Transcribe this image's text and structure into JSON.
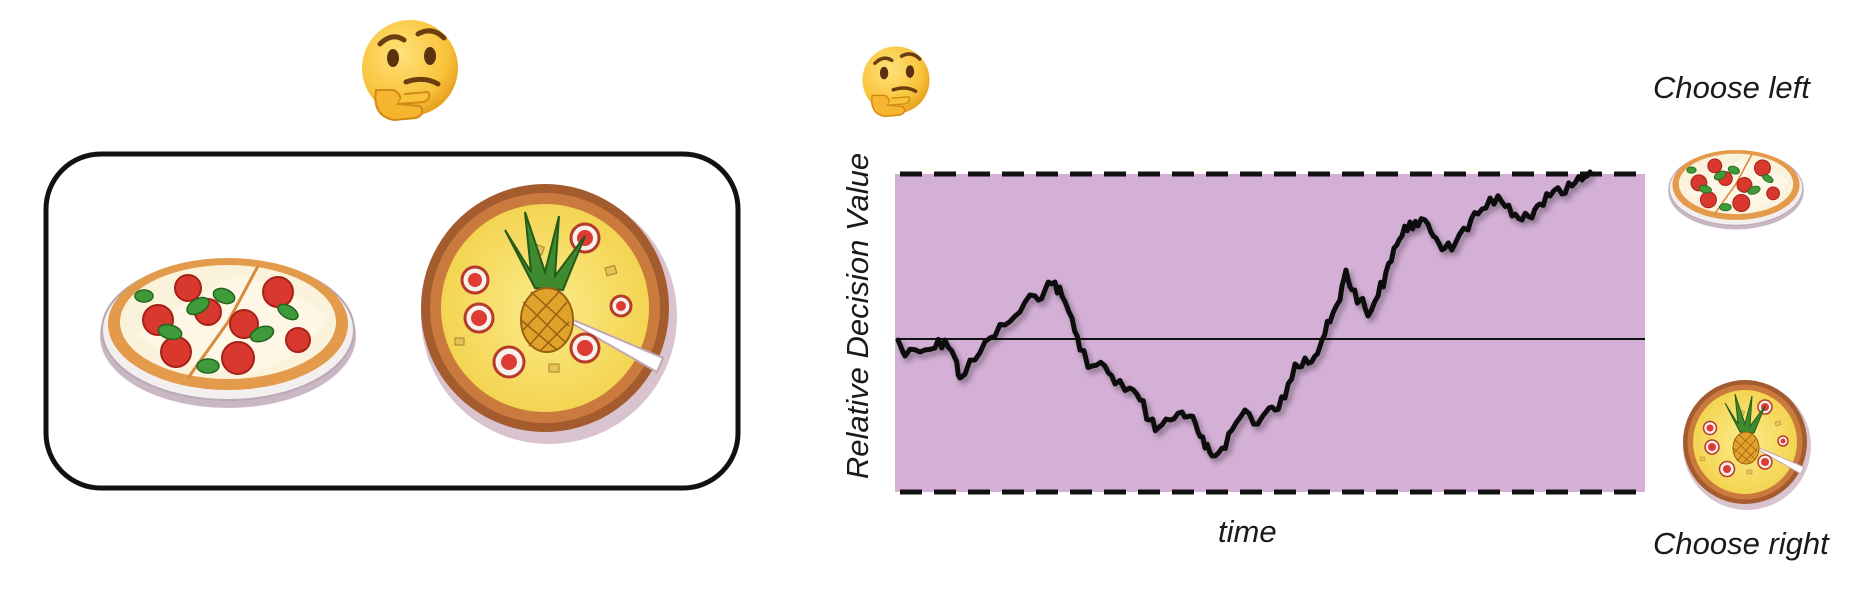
{
  "diagram": {
    "labels": {
      "y_axis": "Relative Decision Value",
      "x_axis": "time",
      "upper_choice": "Choose left",
      "lower_choice": "Choose right"
    },
    "icons": [
      "thinking-face-emoji",
      "margherita-pizza",
      "pineapple-pizza"
    ],
    "colors": {
      "decision_region": "#d4b0d6",
      "trace": "#111111",
      "bounds": "#111111"
    }
  }
}
